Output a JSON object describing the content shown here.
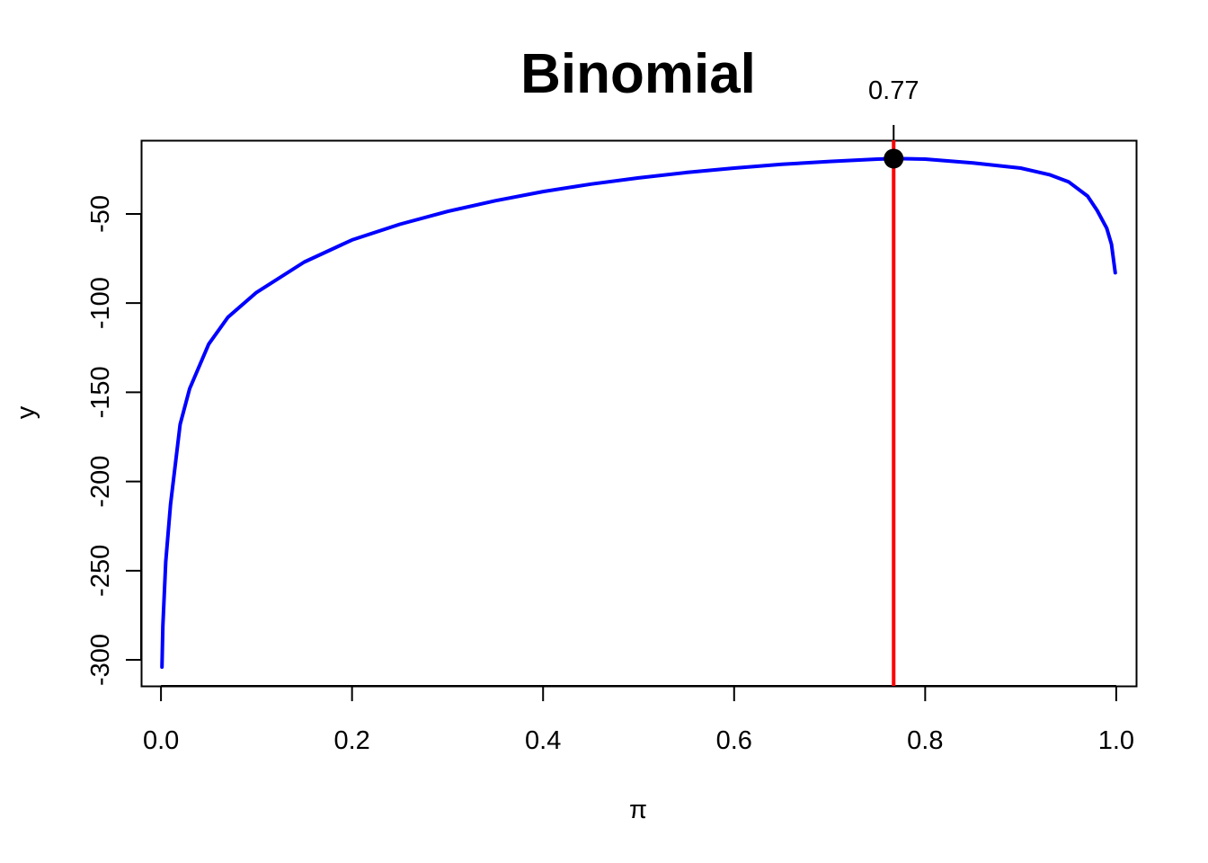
{
  "chart_data": {
    "type": "line",
    "title": "Binomial",
    "xlabel": "π",
    "ylabel": "y",
    "xlim": [
      -0.0208,
      1.0208
    ],
    "ylim": [
      -314.6,
      -8.7
    ],
    "x_ticks": [
      0.0,
      0.2,
      0.4,
      0.6,
      0.8,
      1.0
    ],
    "x_tick_labels": [
      "0.0",
      "0.2",
      "0.4",
      "0.6",
      "0.8",
      "1.0"
    ],
    "y_ticks": [
      -300,
      -250,
      -200,
      -150,
      -100,
      -50
    ],
    "y_tick_labels": [
      "-300",
      "-250",
      "-200",
      "-150",
      "-100",
      "-50"
    ],
    "grid": false,
    "series": [
      {
        "color": "#0000ff",
        "x": [
          0.001,
          0.002,
          0.005,
          0.01,
          0.02,
          0.03,
          0.05,
          0.07,
          0.1,
          0.15,
          0.2,
          0.25,
          0.3,
          0.35,
          0.4,
          0.45,
          0.5,
          0.55,
          0.6,
          0.65,
          0.7,
          0.75,
          0.77,
          0.8,
          0.85,
          0.9,
          0.93,
          0.95,
          0.97,
          0.98,
          0.99,
          0.995,
          0.999
        ],
        "y": [
          -304,
          -281,
          -245,
          -213,
          -168,
          -148,
          -123,
          -108,
          -94,
          -77,
          -64.6,
          -55.8,
          -48.6,
          -42.6,
          -37.5,
          -33.3,
          -29.8,
          -26.8,
          -24.3,
          -22.2,
          -20.6,
          -19.3,
          -19.0,
          -19.3,
          -21.4,
          -24.3,
          -28.0,
          -32.0,
          -40.0,
          -48.0,
          -58.0,
          -67.0,
          -83.0
        ]
      }
    ],
    "annotations": {
      "vline_x": 0.767,
      "vline_color": "#ff0000",
      "point": {
        "x": 0.767,
        "y": -19.0,
        "color": "#000000"
      },
      "label": "0.77"
    }
  }
}
